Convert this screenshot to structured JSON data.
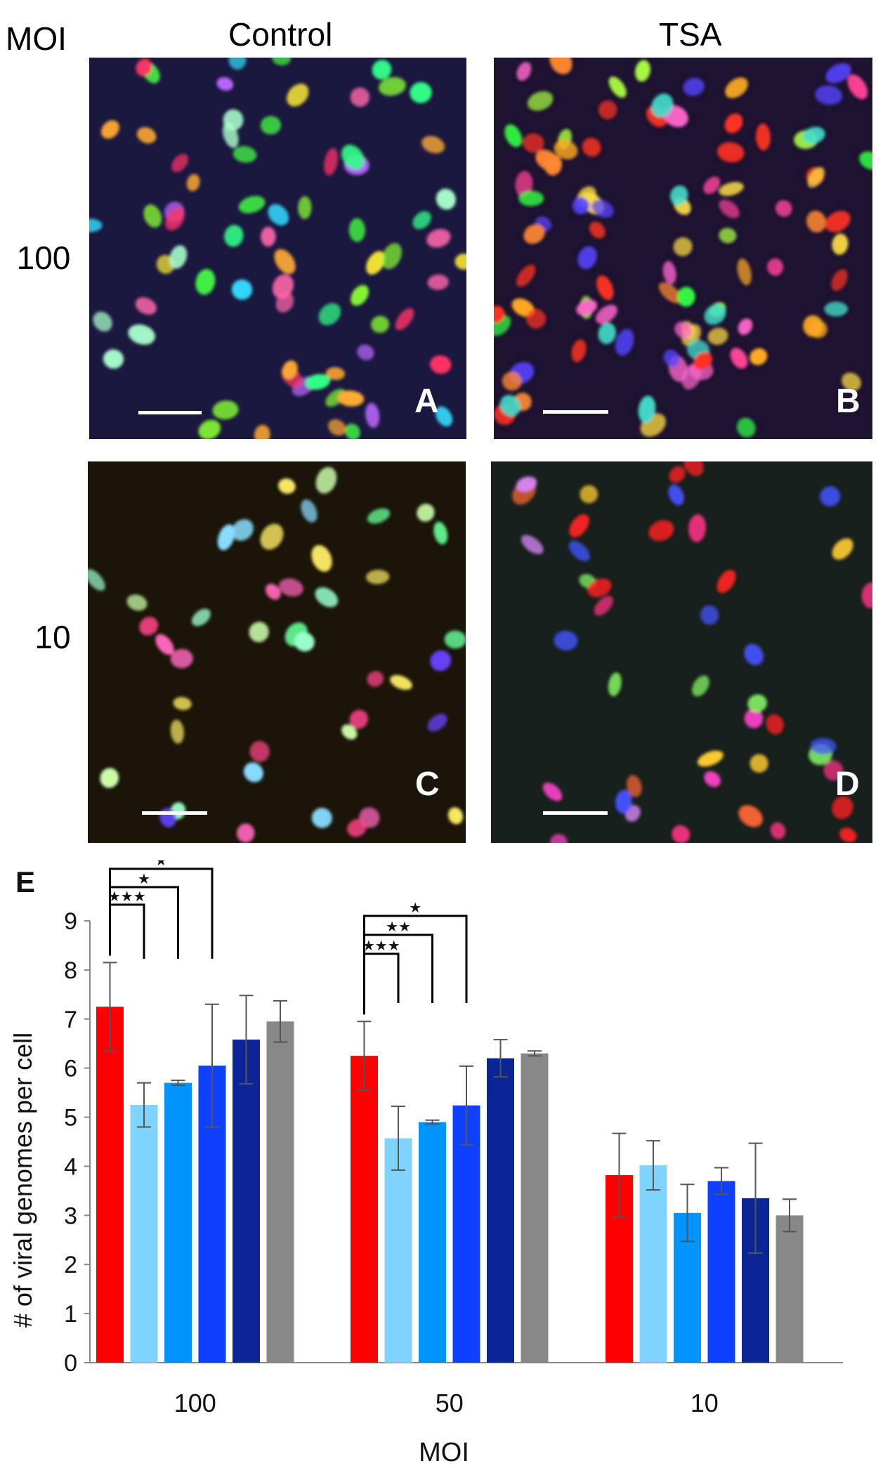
{
  "figure": {
    "column_headers": [
      "Control",
      "TSA"
    ],
    "row_header": "MOI",
    "row_labels": [
      "100",
      "10"
    ],
    "panels": [
      {
        "letter": "A",
        "condition": "Control",
        "moi": "100",
        "background": "#1b1840"
      },
      {
        "letter": "B",
        "condition": "TSA",
        "moi": "100",
        "background": "#1d1230"
      },
      {
        "letter": "C",
        "condition": "Control",
        "moi": "10",
        "background": "#1a1508"
      },
      {
        "letter": "D",
        "condition": "TSA",
        "moi": "10",
        "background": "#17201c"
      }
    ],
    "panel_E_letter": "E"
  },
  "chart_data": {
    "type": "bar",
    "categories": [
      "100",
      "50",
      "10"
    ],
    "xlabel": "MOI",
    "ylabel": "# of viral genomes per cell",
    "ylim": [
      0,
      9
    ],
    "yticks": [
      0,
      1,
      2,
      3,
      4,
      5,
      6,
      7,
      8,
      9
    ],
    "grid": false,
    "legend": "none",
    "series": [
      {
        "color": "#ff0000",
        "values": [
          7.25,
          6.25,
          3.82
        ],
        "errors": [
          0.9,
          0.7,
          0.85
        ]
      },
      {
        "color": "#7fd4ff",
        "values": [
          5.25,
          4.57,
          4.02
        ],
        "errors": [
          0.45,
          0.65,
          0.5
        ]
      },
      {
        "color": "#0094ff",
        "values": [
          5.7,
          4.9,
          3.05
        ],
        "errors": [
          0.05,
          0.04,
          0.58
        ]
      },
      {
        "color": "#1040ff",
        "values": [
          6.05,
          5.24,
          3.7
        ],
        "errors": [
          1.25,
          0.8,
          0.27
        ]
      },
      {
        "color": "#0a2596",
        "values": [
          6.58,
          6.2,
          3.35
        ],
        "errors": [
          0.9,
          0.38,
          1.12
        ]
      },
      {
        "color": "#888888",
        "values": [
          6.95,
          6.3,
          3.0
        ],
        "errors": [
          0.42,
          0.05,
          0.33
        ]
      }
    ],
    "significance": [
      {
        "category": "100",
        "from_series": 0,
        "to_series": 1,
        "label": "★★★"
      },
      {
        "category": "100",
        "from_series": 0,
        "to_series": 2,
        "label": "★"
      },
      {
        "category": "100",
        "from_series": 0,
        "to_series": 3,
        "label": "★"
      },
      {
        "category": "50",
        "from_series": 0,
        "to_series": 1,
        "label": "★★★"
      },
      {
        "category": "50",
        "from_series": 0,
        "to_series": 2,
        "label": "★★"
      },
      {
        "category": "50",
        "from_series": 0,
        "to_series": 3,
        "label": "★"
      }
    ]
  }
}
